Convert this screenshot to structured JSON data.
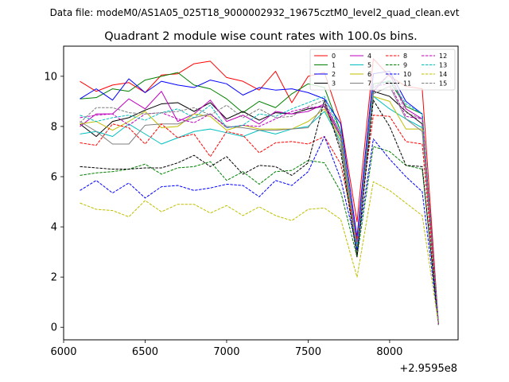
{
  "header": {
    "suptitle": "Data file: modeM0/AS1A05_025T18_9000002932_19675cztM0_level2_quad_clean.evt"
  },
  "chart_data": {
    "type": "line",
    "title": "Quadrant 2 module wise count rates with 100.0s bins.",
    "xlabel": "",
    "ylabel": "",
    "x_offset_label": "+2.9595e8",
    "x": [
      6100,
      6200,
      6300,
      6400,
      6500,
      6600,
      6700,
      6800,
      6900,
      7000,
      7100,
      7200,
      7300,
      7400,
      7500,
      7600,
      7700,
      7800,
      7900,
      8000,
      8100,
      8200,
      8300
    ],
    "xlim": [
      6000,
      8420
    ],
    "ylim": [
      -0.5,
      11.2
    ],
    "xticks": [
      6000,
      6500,
      7000,
      7500,
      8000
    ],
    "yticks": [
      0,
      2,
      4,
      6,
      8,
      10
    ],
    "grid": false,
    "legend": {
      "location": "top-right",
      "columns": 4
    },
    "series": [
      {
        "name": "0",
        "color": "#ff0000",
        "dash": "solid",
        "values": [
          9.8,
          9.4,
          9.65,
          9.75,
          9.35,
          10.05,
          10.1,
          10.5,
          10.6,
          9.95,
          9.8,
          9.45,
          10.2,
          8.95,
          10.0,
          10.15,
          8.2,
          4.2,
          10.7,
          10.0,
          9.6,
          9.5,
          0.1
        ]
      },
      {
        "name": "1",
        "color": "#008000",
        "dash": "solid",
        "values": [
          9.1,
          9.15,
          9.5,
          9.4,
          9.85,
          10.0,
          10.15,
          9.65,
          9.5,
          9.1,
          8.55,
          9.0,
          8.75,
          9.3,
          9.7,
          9.55,
          7.8,
          3.3,
          9.7,
          9.8,
          8.8,
          8.5,
          0.1
        ]
      },
      {
        "name": "2",
        "color": "#0000ff",
        "dash": "solid",
        "values": [
          9.1,
          9.5,
          9.05,
          9.9,
          9.35,
          9.8,
          9.65,
          9.55,
          9.85,
          9.7,
          9.25,
          9.55,
          9.45,
          9.5,
          9.35,
          9.1,
          8.1,
          3.6,
          10.1,
          10.2,
          9.0,
          8.5,
          0.1
        ]
      },
      {
        "name": "3",
        "color": "#000000",
        "dash": "solid",
        "values": [
          8.1,
          7.6,
          8.2,
          8.35,
          8.65,
          8.9,
          8.95,
          8.6,
          8.95,
          8.3,
          8.6,
          8.25,
          8.55,
          8.5,
          8.7,
          8.8,
          7.6,
          3.0,
          9.4,
          9.2,
          8.6,
          8.1,
          0.1
        ]
      },
      {
        "name": "4",
        "color": "#bf00bf",
        "dash": "solid",
        "values": [
          8.0,
          8.5,
          8.5,
          9.1,
          8.7,
          9.4,
          8.2,
          8.5,
          9.05,
          8.2,
          8.45,
          8.1,
          8.6,
          8.5,
          8.6,
          8.9,
          7.7,
          3.4,
          9.4,
          10.1,
          8.7,
          8.3,
          0.1
        ]
      },
      {
        "name": "5",
        "color": "#00bfbf",
        "dash": "solid",
        "values": [
          7.7,
          7.8,
          7.6,
          8.1,
          7.7,
          7.3,
          7.55,
          7.8,
          7.9,
          7.75,
          7.6,
          7.85,
          7.7,
          7.9,
          8.0,
          8.6,
          7.4,
          2.9,
          9.2,
          8.7,
          8.3,
          7.95,
          0.1
        ]
      },
      {
        "name": "6",
        "color": "#bfbf00",
        "dash": "solid",
        "values": [
          8.1,
          8.2,
          7.85,
          8.2,
          8.6,
          7.95,
          8.0,
          8.5,
          8.4,
          7.85,
          8.05,
          7.9,
          7.9,
          7.9,
          8.2,
          8.7,
          7.5,
          3.1,
          9.2,
          9.0,
          7.9,
          7.9,
          0.1
        ]
      },
      {
        "name": "7",
        "color": "#7f7f7f",
        "dash": "solid",
        "values": [
          8.2,
          7.8,
          7.3,
          7.3,
          8.05,
          8.1,
          8.1,
          8.35,
          8.5,
          8.0,
          7.95,
          7.85,
          7.85,
          7.9,
          7.95,
          8.9,
          7.2,
          2.9,
          9.3,
          9.6,
          8.3,
          7.8,
          0.1
        ]
      },
      {
        "name": "8",
        "color": "#ff0000",
        "dash": "dashed",
        "values": [
          7.35,
          7.25,
          8.1,
          7.95,
          7.3,
          8.1,
          7.55,
          7.7,
          6.8,
          7.8,
          7.65,
          6.95,
          7.35,
          7.4,
          7.3,
          7.6,
          6.5,
          3.5,
          8.45,
          8.4,
          7.4,
          7.3,
          0.1
        ]
      },
      {
        "name": "9",
        "color": "#008000",
        "dash": "dashed",
        "values": [
          6.05,
          6.15,
          6.2,
          6.3,
          6.5,
          6.1,
          6.35,
          6.4,
          6.6,
          5.85,
          6.2,
          5.7,
          6.2,
          6.25,
          6.65,
          6.55,
          5.4,
          2.8,
          7.2,
          7.0,
          6.45,
          6.3,
          0.1
        ]
      },
      {
        "name": "10",
        "color": "#0000ff",
        "dash": "dashed",
        "values": [
          5.45,
          5.85,
          5.35,
          5.75,
          5.15,
          5.6,
          5.65,
          5.45,
          5.55,
          5.7,
          5.65,
          5.2,
          5.85,
          5.65,
          6.2,
          7.6,
          5.9,
          3.1,
          7.5,
          6.7,
          6.0,
          5.4,
          0.1
        ]
      },
      {
        "name": "11",
        "color": "#000000",
        "dash": "dashed",
        "values": [
          6.4,
          6.35,
          6.3,
          6.3,
          6.35,
          6.35,
          6.55,
          6.85,
          6.4,
          6.8,
          6.1,
          6.45,
          6.4,
          6.05,
          6.55,
          9.05,
          7.0,
          2.8,
          9.05,
          8.0,
          6.45,
          6.4,
          0.1
        ]
      },
      {
        "name": "12",
        "color": "#bf00bf",
        "dash": "dashed",
        "values": [
          8.35,
          8.45,
          8.5,
          8.05,
          8.5,
          8.55,
          8.3,
          8.15,
          8.5,
          7.95,
          8.05,
          8.0,
          8.3,
          8.6,
          8.75,
          8.8,
          7.6,
          3.3,
          9.6,
          9.7,
          8.4,
          8.3,
          0.1
        ]
      },
      {
        "name": "13",
        "color": "#00bfbf",
        "dash": "dashed",
        "values": [
          8.45,
          8.2,
          8.35,
          8.45,
          8.25,
          8.55,
          8.7,
          8.35,
          8.85,
          7.95,
          8.05,
          8.5,
          8.4,
          8.7,
          8.95,
          9.2,
          7.8,
          3.2,
          9.55,
          9.85,
          8.9,
          8.5,
          0.1
        ]
      },
      {
        "name": "14",
        "color": "#bfbf00",
        "dash": "dashed",
        "values": [
          4.95,
          4.7,
          4.65,
          4.4,
          5.05,
          4.6,
          4.9,
          4.9,
          4.55,
          4.85,
          4.45,
          4.8,
          4.45,
          4.25,
          4.7,
          4.75,
          4.3,
          2.0,
          5.8,
          5.45,
          4.95,
          4.45,
          0.1
        ]
      },
      {
        "name": "15",
        "color": "#7f7f7f",
        "dash": "dashed",
        "values": [
          8.15,
          8.75,
          8.75,
          8.55,
          8.5,
          8.55,
          8.6,
          8.75,
          8.45,
          8.85,
          8.35,
          8.7,
          8.35,
          8.4,
          8.8,
          9.05,
          7.7,
          3.2,
          9.5,
          10.1,
          8.55,
          8.3,
          0.1
        ]
      }
    ]
  }
}
